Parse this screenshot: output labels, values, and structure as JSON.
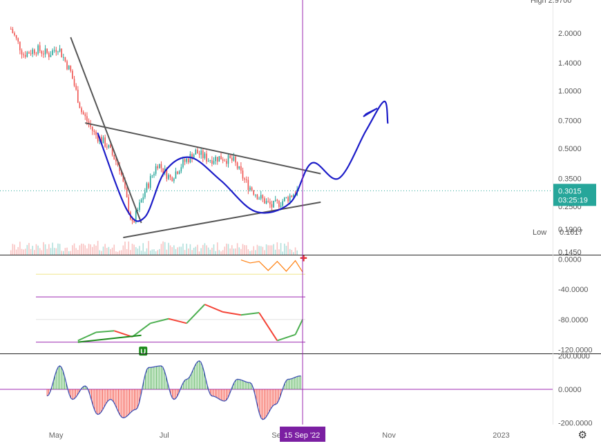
{
  "chart_data": [
    {
      "type": "candlestick",
      "title": "",
      "scale": "log",
      "ylim": [
        0.14,
        2.97
      ],
      "y_ticks": [
        "2.0000",
        "1.4000",
        "1.0000",
        "0.7000",
        "0.5000",
        "0.3500",
        "0.2500",
        "0.1900",
        "0.1450"
      ],
      "y_tick_values": [
        2.0,
        1.4,
        1.0,
        0.7,
        0.5,
        0.35,
        0.25,
        0.19,
        0.145
      ],
      "top_label": "High  2.9700",
      "last_price": "0.3015",
      "countdown": "03:25:19",
      "low_label": "Low",
      "low_value": "0.1617",
      "price_trend": [
        {
          "x": "2022-04-07",
          "y": 2.1
        },
        {
          "x": "2022-04-14",
          "y": 1.55
        },
        {
          "x": "2022-04-21",
          "y": 1.65
        },
        {
          "x": "2022-04-28",
          "y": 1.55
        },
        {
          "x": "2022-05-03",
          "y": 1.7
        },
        {
          "x": "2022-05-10",
          "y": 1.25
        },
        {
          "x": "2022-05-16",
          "y": 0.78
        },
        {
          "x": "2022-05-23",
          "y": 0.6
        },
        {
          "x": "2022-05-30",
          "y": 0.52
        },
        {
          "x": "2022-06-06",
          "y": 0.4
        },
        {
          "x": "2022-06-13",
          "y": 0.2
        },
        {
          "x": "2022-06-20",
          "y": 0.3
        },
        {
          "x": "2022-06-27",
          "y": 0.42
        },
        {
          "x": "2022-07-04",
          "y": 0.35
        },
        {
          "x": "2022-07-11",
          "y": 0.42
        },
        {
          "x": "2022-07-18",
          "y": 0.48
        },
        {
          "x": "2022-07-25",
          "y": 0.44
        },
        {
          "x": "2022-08-01",
          "y": 0.45
        },
        {
          "x": "2022-08-08",
          "y": 0.43
        },
        {
          "x": "2022-08-15",
          "y": 0.33
        },
        {
          "x": "2022-08-22",
          "y": 0.28
        },
        {
          "x": "2022-08-29",
          "y": 0.25
        },
        {
          "x": "2022-09-05",
          "y": 0.27
        },
        {
          "x": "2022-09-12",
          "y": 0.3
        }
      ],
      "annotations": {
        "downtrend_line": [
          {
            "x": "2022-05-10",
            "y": 1.9
          },
          {
            "x": "2022-06-18",
            "y": 0.205
          }
        ],
        "upper_triangle_line": [
          {
            "x": "2022-05-18",
            "y": 0.68
          },
          {
            "x": "2022-09-25",
            "y": 0.37
          }
        ],
        "lower_triangle_line": [
          {
            "x": "2022-06-08",
            "y": 0.172
          },
          {
            "x": "2022-09-25",
            "y": 0.263
          }
        ],
        "projection_path": [
          {
            "x": "2022-05-25",
            "y": 0.6
          },
          {
            "x": "2022-06-10",
            "y": 0.24
          },
          {
            "x": "2022-06-20",
            "y": 0.22
          },
          {
            "x": "2022-07-01",
            "y": 0.38
          },
          {
            "x": "2022-07-15",
            "y": 0.45
          },
          {
            "x": "2022-08-01",
            "y": 0.34
          },
          {
            "x": "2022-08-20",
            "y": 0.235
          },
          {
            "x": "2022-09-08",
            "y": 0.26
          },
          {
            "x": "2022-09-20",
            "y": 0.42
          },
          {
            "x": "2022-10-05",
            "y": 0.35
          },
          {
            "x": "2022-10-20",
            "y": 0.62
          },
          {
            "x": "2022-10-30",
            "y": 0.88
          },
          {
            "x": "2022-11-01",
            "y": 0.68
          }
        ]
      }
    },
    {
      "type": "line",
      "title": "",
      "ylim": [
        -125,
        5
      ],
      "y_ticks": [
        "0.0000",
        "-40.0000",
        "-80.0000",
        "-120.0000"
      ],
      "y_tick_values": [
        0,
        -40,
        -80,
        -120
      ],
      "reference_lines": [
        -20,
        -50,
        -80,
        -110
      ],
      "marker_label": "U",
      "series": [
        {
          "values_x": [
            "2022-05-14",
            "2022-05-24",
            "2022-06-03",
            "2022-06-13",
            "2022-06-23",
            "2022-07-03",
            "2022-07-13",
            "2022-07-23",
            "2022-08-02",
            "2022-08-12",
            "2022-08-22",
            "2022-09-01",
            "2022-09-11",
            "2022-09-15"
          ],
          "values": [
            -108,
            -97,
            -95,
            -103,
            -85,
            -79,
            -85,
            -60,
            -70,
            -74,
            -71,
            -108,
            -100,
            -80
          ]
        },
        {
          "values_x": [
            "2022-08-12",
            "2022-08-17",
            "2022-08-22",
            "2022-08-27",
            "2022-09-01",
            "2022-09-06",
            "2022-09-11",
            "2022-09-15"
          ],
          "values": [
            -1,
            -5,
            -3,
            -15,
            -3,
            -16,
            -2,
            -17
          ]
        }
      ]
    },
    {
      "type": "histogram",
      "title": "",
      "ylim": [
        -210,
        210
      ],
      "y_ticks": [
        "200.0000",
        "0.0000",
        "-200.0000"
      ],
      "y_tick_values": [
        200,
        0,
        -200
      ],
      "x": [
        "2022-04-27",
        "2022-05-04",
        "2022-05-11",
        "2022-05-18",
        "2022-05-25",
        "2022-06-01",
        "2022-06-08",
        "2022-06-15",
        "2022-06-22",
        "2022-06-29",
        "2022-07-06",
        "2022-07-13",
        "2022-07-20",
        "2022-07-27",
        "2022-08-03",
        "2022-08-10",
        "2022-08-17",
        "2022-08-24",
        "2022-08-31",
        "2022-09-07",
        "2022-09-14"
      ],
      "values": [
        -40,
        140,
        -60,
        20,
        -150,
        -60,
        -170,
        -120,
        130,
        140,
        -60,
        60,
        170,
        -40,
        -70,
        60,
        40,
        -180,
        -90,
        60,
        80
      ]
    }
  ],
  "time_axis": {
    "labels": [
      "May",
      "Jul",
      "Se",
      "Nov",
      "2023"
    ],
    "label_dates": [
      "2022-05-01",
      "2022-07-01",
      "2022-09-01",
      "2022-11-01",
      "2023-01-01"
    ],
    "range": [
      "2022-04-01",
      "2023-01-31"
    ],
    "crosshair_label": "15 Sep '22",
    "crosshair_date": "2022-09-15"
  },
  "colors": {
    "up": "#26a69a",
    "down": "#ef5350",
    "drawing_blue": "#1c1cc8",
    "trendline": "#555555",
    "crosshair": "#9c27b0",
    "badge": "#26a69a",
    "osc_green": "#4caf50",
    "osc_red": "#f44336",
    "osc_orange": "#ff7f0e",
    "ref_yellow": "#f0e68c",
    "ref_purple": "#9c27b0",
    "hist_blue": "#3f51b5"
  },
  "icons": {
    "settings": "gear-icon",
    "settings_glyph": "⚙",
    "signal_marker": "plus-icon",
    "signal_glyph": "✚"
  }
}
